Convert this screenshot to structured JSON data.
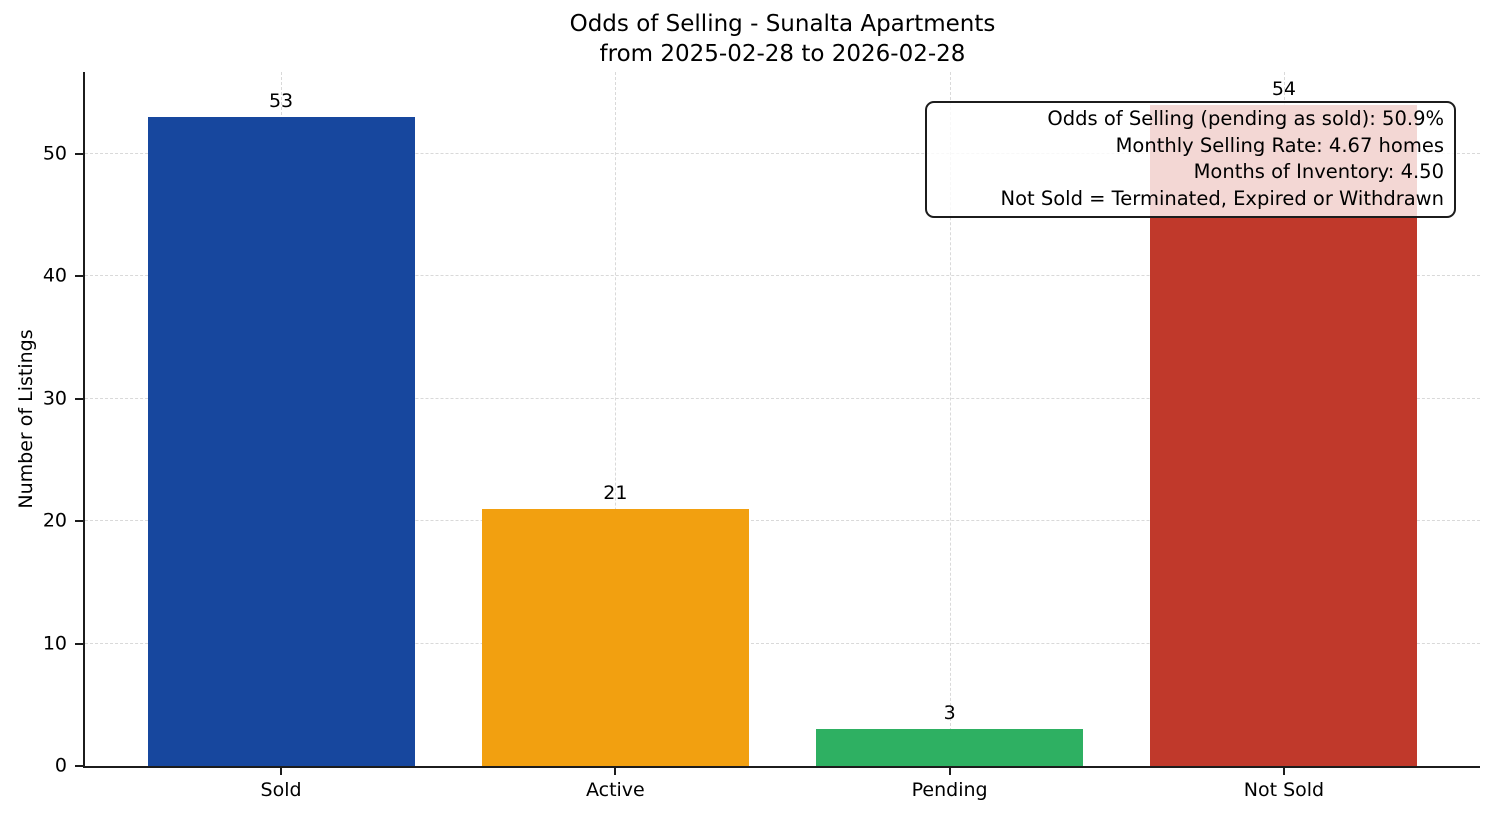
{
  "chart_data": {
    "type": "bar",
    "title": "Odds of Selling - Sunalta Apartments\nfrom 2025-02-28 to 2026-02-28",
    "title_lines": [
      "Odds of Selling - Sunalta Apartments",
      "from 2025-02-28 to 2026-02-28"
    ],
    "categories": [
      "Sold",
      "Active",
      "Pending",
      "Not Sold"
    ],
    "values": [
      53,
      21,
      3,
      54
    ],
    "bar_colors": [
      "#17479e",
      "#f2a010",
      "#2eb062",
      "#c0392b"
    ],
    "xlabel": "",
    "ylabel": "Number of Listings",
    "yticks": [
      0,
      10,
      20,
      30,
      40,
      50
    ],
    "ylim": [
      0,
      56.7
    ],
    "grid": {
      "style": "dashed",
      "color": "#d9d9d9",
      "horizontal": true,
      "vertical": true
    },
    "legend": "none",
    "annotation": {
      "position": "top-right",
      "align": "right",
      "background": "#ffffff",
      "border_color": "#1c1c1c",
      "lines": [
        "Odds of Selling (pending as sold): 50.9%",
        "Monthly Selling Rate: 4.67 homes",
        "Months of Inventory: 4.50",
        "Not Sold = Terminated, Expired or Withdrawn"
      ]
    },
    "style": {
      "background": "#ffffff",
      "text_color": "#000000",
      "spine_color": "#1c1c1c"
    }
  }
}
